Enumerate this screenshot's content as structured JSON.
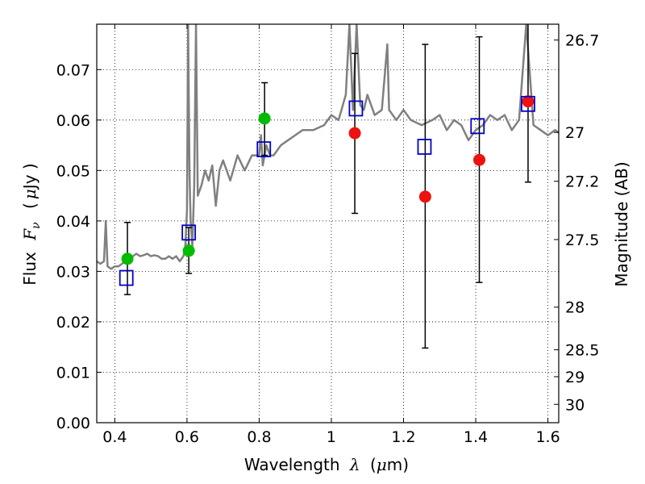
{
  "chart_data": {
    "type": "scatter",
    "xlabel_parts": [
      "Wavelength",
      "λ",
      "(",
      "μ",
      "m)"
    ],
    "ylabel_parts": [
      "Flux",
      "F",
      "ν",
      "(",
      "μ",
      "Jy )"
    ],
    "y2label": "Magnitude (AB)",
    "xlim": [
      0.35,
      1.63
    ],
    "ylim": [
      0.0,
      0.079
    ],
    "xticks": [
      0.4,
      0.6,
      0.8,
      1.0,
      1.2,
      1.4,
      1.6
    ],
    "xtick_labels": [
      "0.4",
      "0.6",
      "0.8",
      "1",
      "1.2",
      "1.4",
      "1.6"
    ],
    "yticks": [
      0.0,
      0.01,
      0.02,
      0.03,
      0.04,
      0.05,
      0.06,
      0.07
    ],
    "ytick_labels": [
      "0.00",
      "0.01",
      "0.02",
      "0.03",
      "0.04",
      "0.05",
      "0.06",
      "0.07"
    ],
    "magnitude_ticks": [
      26.7,
      27.0,
      27.2,
      27.5,
      28.0,
      28.5,
      29.0,
      30.0
    ],
    "magnitude_tick_labels": [
      "26.7",
      "27",
      "27.2",
      "27.5",
      "28",
      "28.5",
      "29",
      "30"
    ],
    "grid": "dotted",
    "spectrum": {
      "color": "#808080",
      "x": [
        0.35,
        0.36,
        0.37,
        0.375,
        0.38,
        0.39,
        0.4,
        0.41,
        0.42,
        0.43,
        0.44,
        0.45,
        0.46,
        0.47,
        0.48,
        0.49,
        0.5,
        0.51,
        0.52,
        0.53,
        0.54,
        0.55,
        0.56,
        0.57,
        0.58,
        0.59,
        0.595,
        0.6,
        0.603,
        0.607,
        0.61,
        0.615,
        0.62,
        0.625,
        0.63,
        0.64,
        0.65,
        0.66,
        0.67,
        0.68,
        0.69,
        0.7,
        0.72,
        0.74,
        0.76,
        0.78,
        0.8,
        0.805,
        0.81,
        0.82,
        0.83,
        0.84,
        0.86,
        0.88,
        0.9,
        0.92,
        0.95,
        0.98,
        1.0,
        1.02,
        1.04,
        1.05,
        1.06,
        1.07,
        1.08,
        1.09,
        1.1,
        1.12,
        1.14,
        1.155,
        1.16,
        1.18,
        1.2,
        1.22,
        1.25,
        1.28,
        1.3,
        1.32,
        1.34,
        1.36,
        1.38,
        1.4,
        1.42,
        1.44,
        1.46,
        1.48,
        1.5,
        1.52,
        1.54,
        1.56,
        1.58,
        1.6,
        1.62,
        1.63
      ],
      "y": [
        0.032,
        0.0315,
        0.032,
        0.04,
        0.031,
        0.0305,
        0.031,
        0.031,
        0.0315,
        0.032,
        0.0325,
        0.033,
        0.0335,
        0.033,
        0.0332,
        0.0335,
        0.033,
        0.0332,
        0.033,
        0.0325,
        0.0325,
        0.033,
        0.0325,
        0.033,
        0.032,
        0.033,
        0.0345,
        0.042,
        0.079,
        0.05,
        0.04,
        0.035,
        0.047,
        0.079,
        0.045,
        0.047,
        0.05,
        0.048,
        0.051,
        0.043,
        0.05,
        0.052,
        0.048,
        0.053,
        0.05,
        0.053,
        0.053,
        0.057,
        0.051,
        0.055,
        0.053,
        0.053,
        0.055,
        0.056,
        0.057,
        0.058,
        0.058,
        0.059,
        0.061,
        0.06,
        0.065,
        0.079,
        0.062,
        0.079,
        0.063,
        0.062,
        0.065,
        0.061,
        0.062,
        0.075,
        0.062,
        0.06,
        0.062,
        0.06,
        0.059,
        0.06,
        0.061,
        0.058,
        0.06,
        0.059,
        0.056,
        0.058,
        0.059,
        0.061,
        0.06,
        0.061,
        0.058,
        0.06,
        0.079,
        0.059,
        0.058,
        0.057,
        0.058,
        0.0575
      ]
    },
    "series": [
      {
        "color": "#00bb00",
        "marker": "circle",
        "x": [
          0.435,
          0.605,
          0.815
        ],
        "y": [
          0.0325,
          0.0341,
          0.0603
        ],
        "yerr_low": [
          0.0254,
          0.0296,
          0.053
        ],
        "yerr_high": [
          0.0397,
          0.0387,
          0.0674
        ]
      },
      {
        "color": "#ee1111",
        "marker": "circle",
        "x": [
          1.065,
          1.26,
          1.41,
          1.545
        ],
        "y": [
          0.0574,
          0.0448,
          0.0521,
          0.0637
        ],
        "yerr_low": [
          0.0415,
          0.0148,
          0.0278,
          0.0477
        ],
        "yerr_high": [
          0.0732,
          0.075,
          0.0765,
          0.079
        ]
      },
      {
        "color": "#0000cc",
        "marker": "open-square",
        "x": [
          0.432,
          0.605,
          0.813,
          1.068,
          1.258,
          1.405,
          1.545
        ],
        "y": [
          0.0287,
          0.0377,
          0.0542,
          0.0623,
          0.0547,
          0.0588,
          0.0632
        ]
      }
    ]
  }
}
